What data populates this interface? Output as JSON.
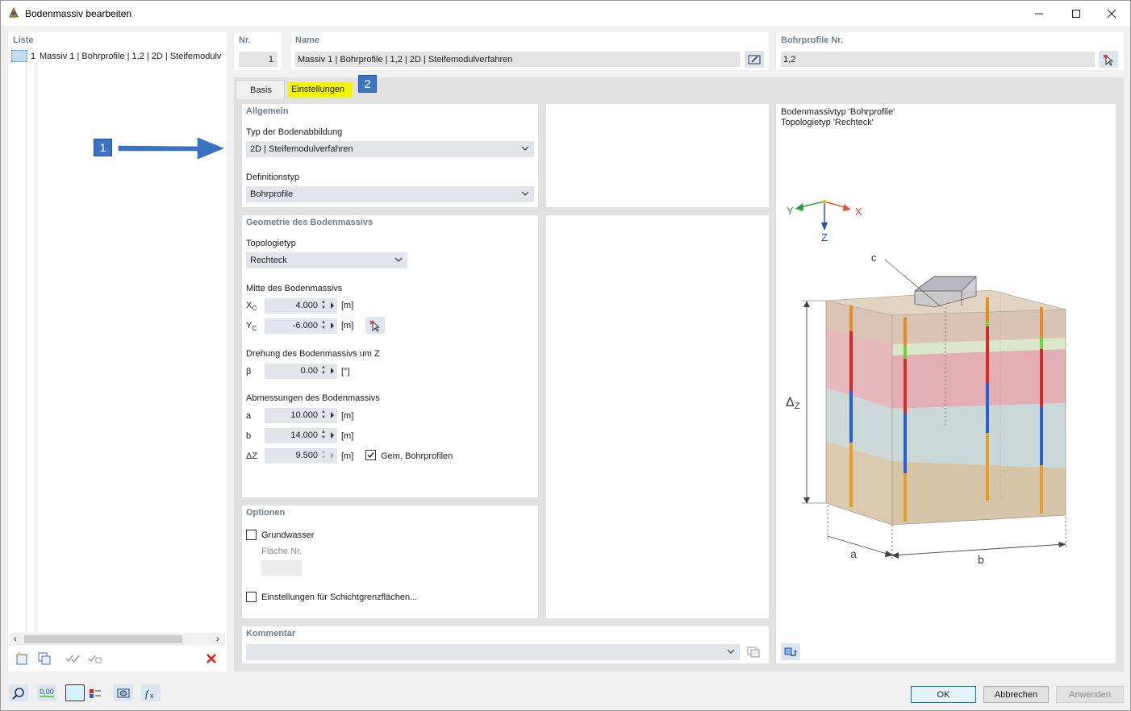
{
  "window": {
    "title": "Bodenmassiv bearbeiten"
  },
  "list": {
    "header": "Liste",
    "items": [
      {
        "num": "1",
        "text": "Massiv 1 | Bohrprofile | 1,2 | 2D | Steifemodulv"
      }
    ]
  },
  "header": {
    "nr_label": "Nr.",
    "nr_value": "1",
    "name_label": "Name",
    "name_value": "Massiv 1 | Bohrprofile | 1,2 | 2D | Steifemodulverfahren",
    "bohr_label": "Bohrprofile Nr.",
    "bohr_value": "1,2"
  },
  "tabs": [
    {
      "label": "Basis",
      "active": true
    },
    {
      "label": "Einstellungen",
      "highlighted": true
    }
  ],
  "callouts": {
    "one": "1",
    "two": "2"
  },
  "allgemein": {
    "title": "Allgemein",
    "typ_label": "Typ der Bodenabbildung",
    "typ_value": "2D | Steifemodulverfahren",
    "def_label": "Definitionstyp",
    "def_value": "Bohrprofile"
  },
  "geometrie": {
    "title": "Geometrie des Bodenmassivs",
    "topo_label": "Topologietyp",
    "topo_value": "Rechteck",
    "mitte_label": "Mitte des Bodenmassivs",
    "xc_label": "X",
    "xc_sub": "C",
    "xc_value": "4.000",
    "xc_unit": "[m]",
    "yc_label": "Y",
    "yc_sub": "C",
    "yc_value": "-6.000",
    "yc_unit": "[m]",
    "dreh_label": "Drehung des Bodenmassivs um Z",
    "beta_label": "β",
    "beta_value": "0.00",
    "beta_unit": "[°]",
    "abm_label": "Abmessungen des Bodenmassivs",
    "a_label": "a",
    "a_value": "10.000",
    "a_unit": "[m]",
    "b_label": "b",
    "b_value": "14.000",
    "b_unit": "[m]",
    "dz_label": "ΔZ",
    "dz_value": "9.500",
    "dz_unit": "[m]",
    "gem_label": "Gem. Bohrprofilen",
    "gem_checked": true
  },
  "optionen": {
    "title": "Optionen",
    "grundwasser_label": "Grundwasser",
    "grundwasser_checked": false,
    "flaeche_label": "Fläche Nr.",
    "flaeche_value": "",
    "schicht_label": "Einstellungen für Schichtgrenzflächen...",
    "schicht_checked": false
  },
  "kommentar": {
    "title": "Kommentar",
    "value": ""
  },
  "preview": {
    "line1": "Bodenmassivtyp 'Bohrprofile'",
    "line2": "Topologietyp 'Rechteck'",
    "axis_x": "X",
    "axis_y": "Y",
    "axis_z": "Z",
    "label_c": "c",
    "label_dz": "Δ",
    "label_dz_sub": "Z",
    "label_a": "a",
    "label_b": "b"
  },
  "buttons": {
    "ok": "OK",
    "cancel": "Abbrechen",
    "apply": "Anwenden"
  },
  "bottom_tools": {
    "num_icon": "0,00"
  },
  "colors": {
    "accent": "#3a73c4",
    "section_title": "#6b7f93",
    "highlight": "#f5f500",
    "delete": "#e02020"
  }
}
